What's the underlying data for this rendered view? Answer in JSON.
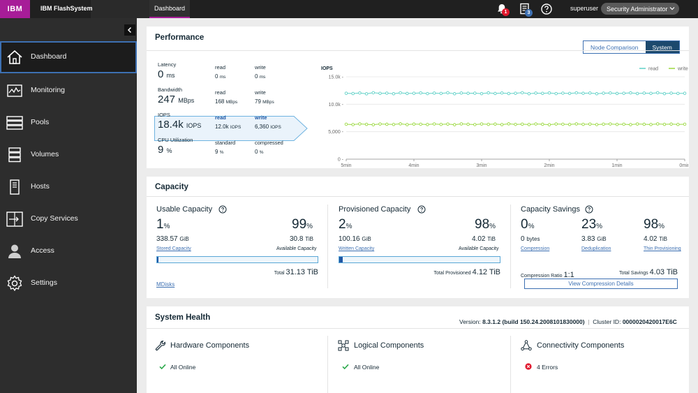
{
  "topbar": {
    "logo": "IBM",
    "product": "IBM FlashSystem",
    "breadcrumb": "Dashboard",
    "notifications_count": "1",
    "tasks_count": "3",
    "user": "superuser",
    "role": "Security Administrator"
  },
  "sidebar": {
    "items": [
      {
        "label": "Dashboard",
        "icon": "home-icon"
      },
      {
        "label": "Monitoring",
        "icon": "monitoring-icon"
      },
      {
        "label": "Pools",
        "icon": "pools-icon"
      },
      {
        "label": "Volumes",
        "icon": "volumes-icon"
      },
      {
        "label": "Hosts",
        "icon": "hosts-icon"
      },
      {
        "label": "Copy Services",
        "icon": "copy-services-icon"
      },
      {
        "label": "Access",
        "icon": "access-icon"
      },
      {
        "label": "Settings",
        "icon": "gear-icon"
      }
    ]
  },
  "performance": {
    "title": "Performance",
    "toggle": [
      "Node Comparison",
      "System"
    ],
    "latency": {
      "label": "Latency",
      "value": "0",
      "unit": "ms",
      "read_label": "read",
      "read": "0",
      "read_unit": "ms",
      "write_label": "write",
      "write": "0",
      "write_unit": "ms"
    },
    "bandwidth": {
      "label": "Bandwidth",
      "value": "247",
      "unit": "MBps",
      "read_label": "read",
      "read": "168",
      "read_unit": "MBps",
      "write_label": "write",
      "write": "79",
      "write_unit": "MBps"
    },
    "iops": {
      "label": "IOPS",
      "value": "18.4k",
      "unit": "IOPS",
      "read_label": "read",
      "read": "12.0k",
      "read_unit": "IOPS",
      "write_label": "write",
      "write": "6,360",
      "write_unit": "IOPS"
    },
    "cpu": {
      "label": "CPU Utilization",
      "value": "9",
      "unit": "%",
      "standard_label": "standard",
      "standard": "9",
      "standard_unit": "%",
      "compressed_label": "compressed",
      "compressed": "0",
      "compressed_unit": "%"
    }
  },
  "chart_data": {
    "type": "line",
    "ylabel": "IOPS",
    "ylim": [
      0,
      15000
    ],
    "yticks": [
      "15.0k -",
      "10.0k -",
      "5,000 -",
      "0 -"
    ],
    "ytick_values": [
      15000,
      10000,
      5000,
      0
    ],
    "xticks": [
      "5min",
      "4min",
      "3min",
      "2min",
      "1min",
      "0min"
    ],
    "legend": [
      "read",
      "write"
    ],
    "legend_position": "top-right",
    "colors": {
      "read": "#5fd1c7",
      "write": "#9ad93f"
    },
    "series": [
      {
        "name": "read",
        "values": [
          12000,
          11950,
          12050,
          11900,
          12100,
          11980,
          12020,
          11920,
          12080,
          11960,
          12000,
          12060,
          11940,
          12030,
          11970,
          12090,
          11910,
          12040,
          11990,
          12010,
          11930,
          12070,
          11960,
          12050,
          11950,
          12000,
          12100,
          11920,
          12030,
          11980,
          12060,
          11940,
          12020,
          11970,
          12080,
          11990,
          12040,
          11910,
          12010,
          12050,
          11960,
          12000,
          12070,
          11950,
          12030,
          11980,
          12090,
          11930,
          12020,
          11970,
          12000
        ]
      },
      {
        "name": "write",
        "values": [
          6360,
          6300,
          6420,
          6340,
          6280,
          6400,
          6350,
          6320,
          6430,
          6290,
          6380,
          6360,
          6310,
          6410,
          6330,
          6390,
          6270,
          6420,
          6350,
          6300,
          6400,
          6340,
          6380,
          6290,
          6430,
          6330,
          6370,
          6310,
          6410,
          6350,
          6280,
          6400,
          6360,
          6320,
          6420,
          6340,
          6390,
          6300,
          6370,
          6410,
          6330,
          6360,
          6290,
          6400,
          6350,
          6310,
          6420,
          6340,
          6380,
          6320,
          6360
        ]
      }
    ]
  },
  "capacity": {
    "title": "Capacity",
    "usable": {
      "title": "Usable Capacity",
      "pct_left": "1",
      "pct_right": "99",
      "val_left": "338.57",
      "val_left_unit": "GiB",
      "val_right": "30.8",
      "val_right_unit": "TiB",
      "link_left": "Stored Capacity",
      "label_right": "Available Capacity",
      "fill": 0.01,
      "total_label": "Total",
      "total": "31.13 TiB",
      "mdisks": "MDisks"
    },
    "provisioned": {
      "title": "Provisioned Capacity",
      "pct_left": "2",
      "pct_right": "98",
      "val_left": "100.16",
      "val_left_unit": "GiB",
      "val_right": "4.02",
      "val_right_unit": "TiB",
      "link_left": "Written Capacity",
      "label_right": "Available Capacity",
      "fill": 0.02,
      "total_label": "Total Provisioned",
      "total": "4.12 TiB"
    },
    "savings": {
      "title": "Capacity Savings",
      "items": [
        {
          "pct": "0",
          "val": "0",
          "unit": "bytes",
          "link": "Compression"
        },
        {
          "pct": "23",
          "val": "3.83",
          "unit": "GiB",
          "link": "Deduplication"
        },
        {
          "pct": "98",
          "val": "4.02",
          "unit": "TiB",
          "link": "Thin Provisioning"
        }
      ],
      "ratio_label": "Compression Ratio",
      "ratio": "1:1",
      "total_label": "Total Savings",
      "total": "4.03 TiB",
      "button": "View Compression Details"
    }
  },
  "health": {
    "title": "System Health",
    "version_label": "Version:",
    "version": "8.3.1.2 (build 150.24.2008101830000)",
    "cluster_label": "Cluster ID:",
    "cluster": "0000020420017E6C",
    "separator": "|",
    "components": [
      {
        "title": "Hardware Components",
        "status": "All Online",
        "icon": "wrench-icon",
        "ok": true
      },
      {
        "title": "Logical Components",
        "status": "All Online",
        "icon": "network-icon",
        "ok": true
      },
      {
        "title": "Connectivity Components",
        "status": "4 Errors",
        "icon": "connectivity-icon",
        "ok": false
      }
    ]
  }
}
